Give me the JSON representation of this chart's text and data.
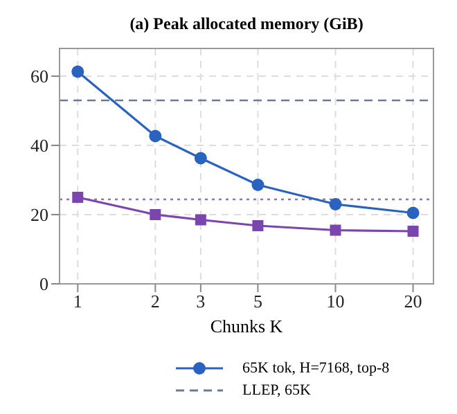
{
  "chart_data": {
    "type": "line",
    "title": "(a) Peak allocated memory (GiB)",
    "xlabel": "Chunks K",
    "log": "x",
    "x": [
      1,
      2,
      3,
      5,
      10,
      20
    ],
    "series": [
      {
        "name": "65K tok, H=7168, top-8",
        "color": "#2a62c0",
        "values": [
          61.3,
          42.7,
          36.3,
          28.6,
          23.0,
          20.5
        ],
        "marker": "circle"
      },
      {
        "color": "#7b45b0",
        "values": [
          25.0,
          20.0,
          18.5,
          16.8,
          15.5,
          15.2
        ],
        "marker": "square"
      }
    ],
    "xlim": [
      0.85,
      24
    ],
    "xticks": [
      1,
      2,
      3,
      5,
      10,
      20
    ],
    "ylim": [
      0,
      68
    ],
    "yticks": [
      0,
      20,
      40,
      60
    ],
    "grid": true,
    "legend": "bottom",
    "line_style": "solid",
    "ref_lines": [
      {
        "axis": "y",
        "value": 53,
        "label": "LLEP, 65K",
        "color": "#6b7a8f",
        "line_style": "dashed"
      },
      {
        "axis": "y",
        "value": 24.4,
        "color": "#8a7aa0",
        "line_style": "dotted"
      }
    ]
  }
}
